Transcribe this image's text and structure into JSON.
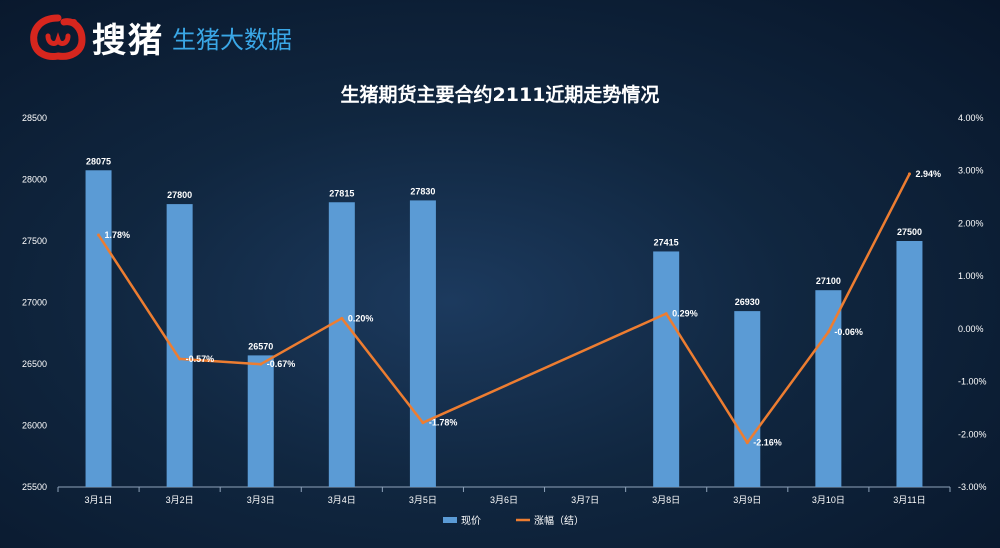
{
  "logo": {
    "brand": "搜猪",
    "subtitle": "生猪大数据"
  },
  "colors": {
    "bar": "#5b9bd5",
    "line": "#ed7d31",
    "logo_red": "#d7261e",
    "logo_blue": "#3aa7e6"
  },
  "chart_data": {
    "type": "bar+line",
    "title": "生猪期货主要合约2111近期走势情况",
    "categories": [
      "3月1日",
      "3月2日",
      "3月3日",
      "3月4日",
      "3月5日",
      "3月6日",
      "3月7日",
      "3月8日",
      "3月9日",
      "3月10日",
      "3月11日"
    ],
    "series": [
      {
        "name": "现价",
        "type": "bar",
        "axis": "left",
        "values": [
          28075,
          27800,
          26570,
          27815,
          27830,
          null,
          null,
          27415,
          26930,
          27100,
          27500
        ]
      },
      {
        "name": "涨幅（结）",
        "type": "line",
        "axis": "right",
        "values": [
          1.78,
          -0.57,
          -0.67,
          0.2,
          -1.78,
          null,
          null,
          0.29,
          -2.16,
          -0.06,
          2.94
        ],
        "labels": [
          "1.78%",
          "-0.57%",
          "-0.67%",
          "0.20%",
          "-1.78%",
          null,
          null,
          "0.29%",
          "-2.16%",
          "-0.06%",
          "2.94%"
        ]
      }
    ],
    "y_left": {
      "min": 25500,
      "max": 28500,
      "ticks": [
        "25500",
        "26000",
        "26500",
        "27000",
        "27500",
        "28000",
        "28500"
      ]
    },
    "y_right": {
      "min": -3,
      "max": 4,
      "ticks": [
        "-3.00%",
        "-2.00%",
        "-1.00%",
        "0.00%",
        "1.00%",
        "2.00%",
        "3.00%",
        "4.00%"
      ]
    },
    "grid": false,
    "legend_position": "bottom"
  }
}
